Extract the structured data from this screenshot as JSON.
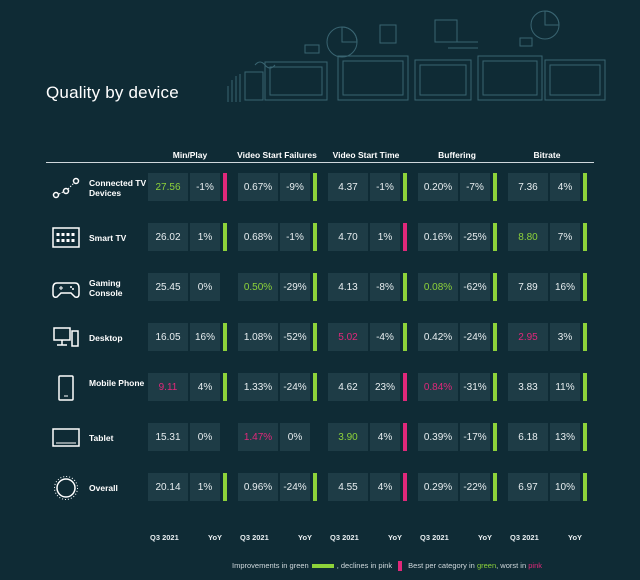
{
  "title": "Quality by device",
  "groups": [
    "Min/Play",
    "Video Start Failures",
    "Video Start Time",
    "Buffering",
    "Bitrate"
  ],
  "footer_labels": [
    "Q3 2021",
    "YoY"
  ],
  "colors": {
    "background": "#0f2b35",
    "cell": "#1e3c46",
    "improve": "#8dd23a",
    "decline": "#e0287a"
  },
  "chart_data": {
    "type": "table",
    "rows": [
      {
        "device": "Connected TV Devices",
        "icon": "connected-dots-icon",
        "cells": [
          {
            "value": "27.56",
            "yoy": "-1%",
            "trend": "decline",
            "rank": "best"
          },
          {
            "value": "0.67%",
            "yoy": "-9%",
            "trend": "improve",
            "rank": ""
          },
          {
            "value": "4.37",
            "yoy": "-1%",
            "trend": "improve",
            "rank": ""
          },
          {
            "value": "0.20%",
            "yoy": "-7%",
            "trend": "improve",
            "rank": ""
          },
          {
            "value": "7.36",
            "yoy": "4%",
            "trend": "improve",
            "rank": ""
          }
        ]
      },
      {
        "device": "Smart TV",
        "icon": "smart-tv-icon",
        "cells": [
          {
            "value": "26.02",
            "yoy": "1%",
            "trend": "improve",
            "rank": ""
          },
          {
            "value": "0.68%",
            "yoy": "-1%",
            "trend": "improve",
            "rank": ""
          },
          {
            "value": "4.70",
            "yoy": "1%",
            "trend": "decline",
            "rank": ""
          },
          {
            "value": "0.16%",
            "yoy": "-25%",
            "trend": "improve",
            "rank": ""
          },
          {
            "value": "8.80",
            "yoy": "7%",
            "trend": "improve",
            "rank": "best"
          }
        ]
      },
      {
        "device": "Gaming Console",
        "icon": "gamepad-icon",
        "cells": [
          {
            "value": "25.45",
            "yoy": "0%",
            "trend": "none",
            "rank": ""
          },
          {
            "value": "0.50%",
            "yoy": "-29%",
            "trend": "improve",
            "rank": "best"
          },
          {
            "value": "4.13",
            "yoy": "-8%",
            "trend": "improve",
            "rank": ""
          },
          {
            "value": "0.08%",
            "yoy": "-62%",
            "trend": "improve",
            "rank": "best"
          },
          {
            "value": "7.89",
            "yoy": "16%",
            "trend": "improve",
            "rank": ""
          }
        ]
      },
      {
        "device": "Desktop",
        "icon": "desktop-icon",
        "cells": [
          {
            "value": "16.05",
            "yoy": "16%",
            "trend": "improve",
            "rank": ""
          },
          {
            "value": "1.08%",
            "yoy": "-52%",
            "trend": "improve",
            "rank": ""
          },
          {
            "value": "5.02",
            "yoy": "-4%",
            "trend": "improve",
            "rank": "worst"
          },
          {
            "value": "0.42%",
            "yoy": "-24%",
            "trend": "improve",
            "rank": ""
          },
          {
            "value": "2.95",
            "yoy": "3%",
            "trend": "improve",
            "rank": "worst"
          }
        ]
      },
      {
        "device": "Mobile Phone",
        "icon": "phone-icon",
        "cells": [
          {
            "value": "9.11",
            "yoy": "4%",
            "trend": "improve",
            "rank": "worst"
          },
          {
            "value": "1.33%",
            "yoy": "-24%",
            "trend": "improve",
            "rank": ""
          },
          {
            "value": "4.62",
            "yoy": "23%",
            "trend": "decline",
            "rank": ""
          },
          {
            "value": "0.84%",
            "yoy": "-31%",
            "trend": "improve",
            "rank": "worst"
          },
          {
            "value": "3.83",
            "yoy": "11%",
            "trend": "improve",
            "rank": ""
          }
        ]
      },
      {
        "device": "Tablet",
        "icon": "tablet-icon",
        "cells": [
          {
            "value": "15.31",
            "yoy": "0%",
            "trend": "none",
            "rank": ""
          },
          {
            "value": "1.47%",
            "yoy": "0%",
            "trend": "none",
            "rank": "worst"
          },
          {
            "value": "3.90",
            "yoy": "4%",
            "trend": "decline",
            "rank": "best"
          },
          {
            "value": "0.39%",
            "yoy": "-17%",
            "trend": "improve",
            "rank": ""
          },
          {
            "value": "6.18",
            "yoy": "13%",
            "trend": "improve",
            "rank": ""
          }
        ]
      },
      {
        "device": "Overall",
        "icon": "circle-icon",
        "cells": [
          {
            "value": "20.14",
            "yoy": "1%",
            "trend": "improve",
            "rank": ""
          },
          {
            "value": "0.96%",
            "yoy": "-24%",
            "trend": "improve",
            "rank": ""
          },
          {
            "value": "4.55",
            "yoy": "4%",
            "trend": "decline",
            "rank": ""
          },
          {
            "value": "0.29%",
            "yoy": "-22%",
            "trend": "improve",
            "rank": ""
          },
          {
            "value": "6.97",
            "yoy": "10%",
            "trend": "improve",
            "rank": ""
          }
        ]
      }
    ]
  },
  "legend": {
    "improvements": "Improvements in green",
    "declines": ", declines in pink",
    "best_prefix": "Best per category in ",
    "green_word": "green",
    "worst_mid": ", worst in ",
    "pink_word": "pink"
  }
}
